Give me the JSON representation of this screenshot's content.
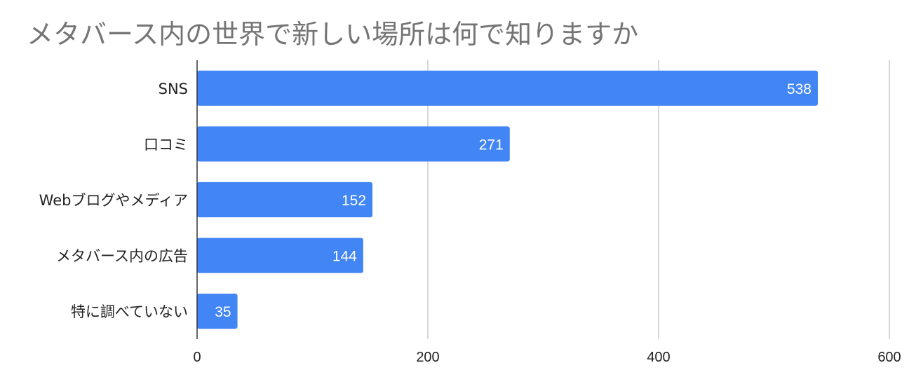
{
  "chart_data": {
    "type": "bar",
    "orientation": "horizontal",
    "title": "メタバース内の世界で新しい場所は何で知りますか",
    "categories": [
      "SNS",
      "口コミ",
      "Webブログやメディア",
      "メタバース内の広告",
      "特に調べていない"
    ],
    "values": [
      538,
      271,
      152,
      144,
      35
    ],
    "xlim": [
      0,
      600
    ],
    "xticks": [
      0,
      200,
      400,
      600
    ],
    "grid": true,
    "legend": "none",
    "bar_color": "#4285f4",
    "grid_color": "#cccccc"
  }
}
